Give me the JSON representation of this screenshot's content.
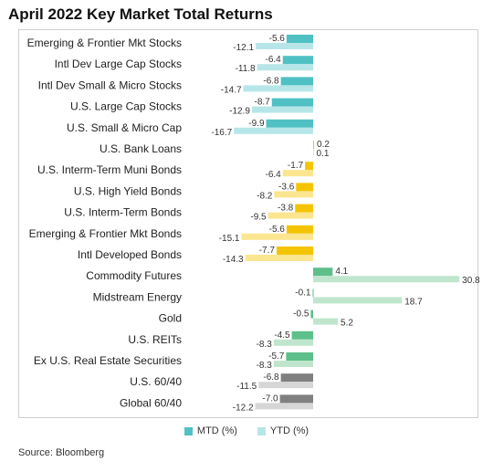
{
  "chart_data": {
    "type": "bar",
    "orientation": "horizontal",
    "title": "April 2022 Key Market Total Returns",
    "categories": [
      "Emerging & Frontier Mkt Stocks",
      "Intl Dev Large Cap Stocks",
      "Intl Dev Small & Micro Stocks",
      "U.S. Large Cap Stocks",
      "U.S. Small & Micro Cap",
      "U.S. Bank Loans",
      "U.S. Interm-Term Muni Bonds",
      "U.S. High Yield Bonds",
      "U.S. Interm-Term Bonds",
      "Emerging & Frontier Mkt Bonds",
      "Intl Developed Bonds",
      "Commodity Futures",
      "Midstream Energy",
      "Gold",
      "U.S. REITs",
      "Ex U.S. Real Estate Securities",
      "U.S. 60/40",
      "Global 60/40"
    ],
    "groups": [
      "stocks",
      "stocks",
      "stocks",
      "stocks",
      "stocks",
      "bonds",
      "bonds",
      "bonds",
      "bonds",
      "bonds",
      "bonds",
      "real",
      "real",
      "real",
      "real",
      "real",
      "balanced",
      "balanced"
    ],
    "series": [
      {
        "name": "MTD (%)",
        "values": [
          -5.6,
          -6.4,
          -6.8,
          -8.7,
          -9.9,
          0.2,
          -1.7,
          -3.6,
          -3.8,
          -5.6,
          -7.7,
          4.1,
          -0.1,
          -0.5,
          -4.5,
          -5.7,
          -6.8,
          -7.0
        ]
      },
      {
        "name": "YTD (%)",
        "values": [
          -12.1,
          -11.8,
          -14.7,
          -12.9,
          -16.7,
          0.1,
          -6.4,
          -8.2,
          -9.5,
          -15.1,
          -14.3,
          30.8,
          18.7,
          5.2,
          -8.3,
          -8.3,
          -11.5,
          -12.2
        ]
      }
    ],
    "value_labels": {
      "mtd": [
        "-5.6",
        "-6.4",
        "-6.8",
        "-8.7",
        "-9.9",
        "0.2",
        "-1.7",
        "-3.6",
        "-3.8",
        "-5.6",
        "-7.7",
        "4.1",
        "-0.1",
        "-0.5",
        "-4.5",
        "-5.7",
        "-6.8",
        "-7.0"
      ],
      "ytd": [
        "-12.1",
        "-11.8",
        "-14.7",
        "-12.9",
        "-16.7",
        "0.1",
        "-6.4",
        "-8.2",
        "-9.5",
        "-15.1",
        "-14.3",
        "30.8",
        "18.7",
        "5.2",
        "-8.3",
        "-8.3",
        "-11.5",
        "-12.2"
      ]
    },
    "colors": {
      "stocks": {
        "mtd": "#4fc1c4",
        "ytd": "#b7e6e8"
      },
      "bonds": {
        "mtd": "#f5c400",
        "ytd": "#fbe58f"
      },
      "real": {
        "mtd": "#5dbf8a",
        "ytd": "#bfe6cd"
      },
      "balanced": {
        "mtd": "#808080",
        "ytd": "#d6d6d6"
      },
      "legend_mtd": "#4fc1c4",
      "legend_ytd": "#b7e6e8"
    },
    "xlim": [
      -17,
      31
    ],
    "grid": false,
    "legend": "bottom-center"
  },
  "source": "Source: Bloomberg"
}
